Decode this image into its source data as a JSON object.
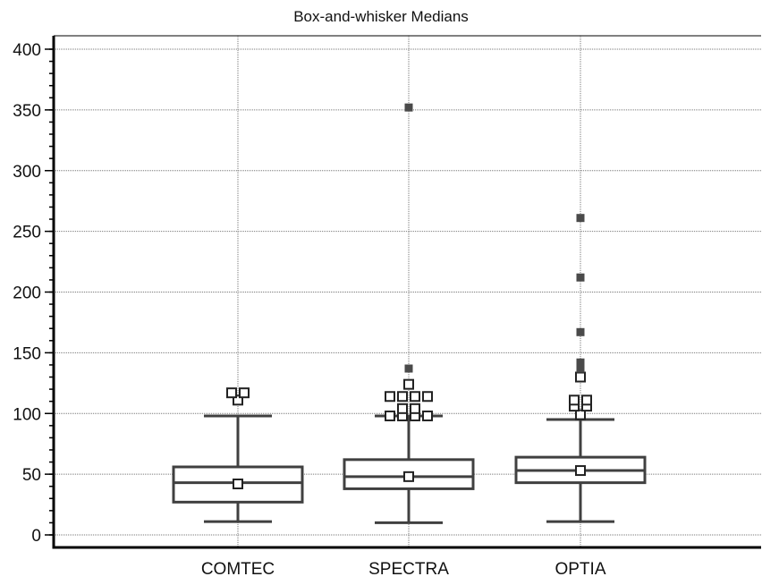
{
  "chart_data": {
    "type": "box",
    "title": "Box-and-whisker Medians",
    "xlabel": "",
    "ylabel": "",
    "ylim": [
      0,
      400
    ],
    "yticks": [
      0,
      50,
      100,
      150,
      200,
      250,
      300,
      350,
      400
    ],
    "grid": true,
    "categories": [
      "COMTEC",
      "SPECTRA",
      "OPTIA"
    ],
    "boxes": [
      {
        "category": "COMTEC",
        "whisker_low": 11,
        "q1": 27,
        "median": 43,
        "q3": 56,
        "whisker_high": 98,
        "mean": 42,
        "outliers": [
          111,
          117,
          117
        ],
        "far_outliers": []
      },
      {
        "category": "SPECTRA",
        "whisker_low": 10,
        "q1": 38,
        "median": 48,
        "q3": 62,
        "whisker_high": 98,
        "mean": 48,
        "outliers": [
          98,
          98,
          98,
          98,
          104,
          104,
          114,
          114,
          114,
          114,
          124
        ],
        "far_outliers": [
          137,
          352
        ]
      },
      {
        "category": "OPTIA",
        "whisker_low": 11,
        "q1": 43,
        "median": 53,
        "q3": 64,
        "whisker_high": 95,
        "mean": 53,
        "outliers": [
          99,
          106,
          106,
          111,
          111,
          130
        ],
        "far_outliers": [
          137,
          142,
          167,
          212,
          261
        ]
      }
    ],
    "colors": {
      "box": "#404040",
      "far_outlier": "#4a4a4a",
      "grid": "#777777"
    }
  }
}
